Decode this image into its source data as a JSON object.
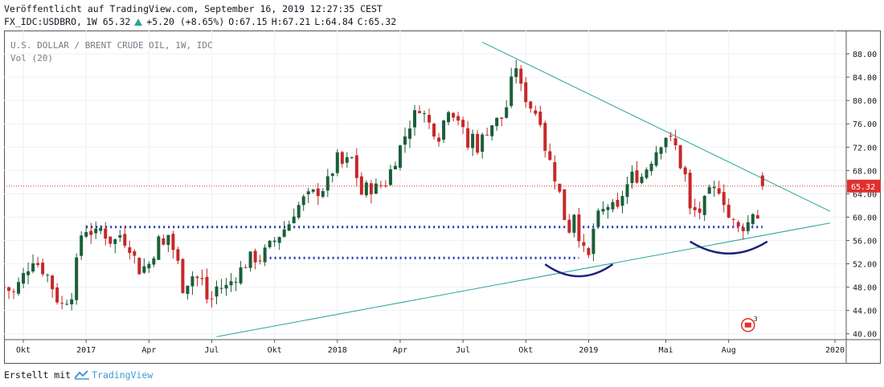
{
  "header": {
    "published": "Veröffentlicht auf TradingView.com, September 16, 2019 12:27:35 CEST",
    "symbol": "FX_IDC:USDBRO,",
    "interval_price": "1W 65.32",
    "change": "+5.20 (+8.65%)",
    "open": "O:67.15",
    "high": "H:67.21",
    "low": "L:64.84",
    "close": "C:65.32"
  },
  "chart_title": "U.S. DOLLAR / BRENT CRUDE OIL, 1W, IDC",
  "volume_label": "Vol (20)",
  "footer": {
    "created_with": "Erstellt mit",
    "brand": "TradingView"
  },
  "colors": {
    "up": "#26a69a",
    "down": "#ef5350",
    "candle_up": "#1b5e3a",
    "candle_down": "#c62828",
    "trendline": "#26a69a",
    "support": "#2233bb",
    "arc": "#1a237e",
    "last_price": "#e0312e"
  },
  "chart_data": {
    "type": "candlestick",
    "title": "U.S. DOLLAR / BRENT CRUDE OIL, 1W, IDC",
    "ylim": [
      39,
      92
    ],
    "y_ticks": [
      "88.00",
      "84.00",
      "80.00",
      "76.00",
      "72.00",
      "68.00",
      "64.00",
      "60.00",
      "56.00",
      "52.00",
      "48.00",
      "44.00",
      "40.00"
    ],
    "x_labels": [
      {
        "text": "Okt",
        "t": 0
      },
      {
        "text": "2017",
        "t": 13
      },
      {
        "text": "Apr",
        "t": 26
      },
      {
        "text": "Jul",
        "t": 39
      },
      {
        "text": "Okt",
        "t": 52
      },
      {
        "text": "2018",
        "t": 65
      },
      {
        "text": "Apr",
        "t": 78
      },
      {
        "text": "Jul",
        "t": 91
      },
      {
        "text": "Okt",
        "t": 104
      },
      {
        "text": "2019",
        "t": 117
      },
      {
        "text": "Mai",
        "t": 133
      },
      {
        "text": "Aug",
        "t": 146
      },
      {
        "text": "2020",
        "t": 168
      }
    ],
    "last_price": 65.32,
    "last_price_label": "65.32",
    "close_path": [
      [
        -4,
        48
      ],
      [
        -2,
        47
      ],
      [
        0,
        50
      ],
      [
        2,
        53
      ],
      [
        3,
        52
      ],
      [
        5,
        50
      ],
      [
        7,
        46
      ],
      [
        8,
        45
      ],
      [
        10,
        47
      ],
      [
        12,
        57
      ],
      [
        13,
        58
      ],
      [
        15,
        57
      ],
      [
        16,
        58
      ],
      [
        18,
        56
      ],
      [
        19,
        56
      ],
      [
        20,
        57
      ],
      [
        22,
        55
      ],
      [
        24,
        51
      ],
      [
        26,
        52
      ],
      [
        28,
        56
      ],
      [
        29,
        55
      ],
      [
        30,
        57
      ],
      [
        32,
        52
      ],
      [
        33,
        48
      ],
      [
        35,
        50
      ],
      [
        37,
        49
      ],
      [
        38,
        46
      ],
      [
        39,
        46
      ],
      [
        40,
        48
      ],
      [
        42,
        48
      ],
      [
        43,
        49
      ],
      [
        45,
        51
      ],
      [
        47,
        53
      ],
      [
        49,
        53
      ],
      [
        50,
        54
      ],
      [
        51,
        55
      ],
      [
        53,
        57
      ],
      [
        55,
        59
      ],
      [
        56,
        61
      ],
      [
        58,
        63
      ],
      [
        60,
        64
      ],
      [
        62,
        65
      ],
      [
        63,
        66
      ],
      [
        65,
        70
      ],
      [
        66,
        69
      ],
      [
        68,
        70
      ],
      [
        70,
        64
      ],
      [
        71,
        65
      ],
      [
        73,
        65
      ],
      [
        75,
        66
      ],
      [
        77,
        70
      ],
      [
        79,
        74
      ],
      [
        80,
        76
      ],
      [
        82,
        79
      ],
      [
        84,
        76
      ],
      [
        86,
        74
      ],
      [
        88,
        79
      ],
      [
        90,
        77
      ],
      [
        92,
        72
      ],
      [
        93,
        74
      ],
      [
        94,
        72
      ],
      [
        96,
        75
      ],
      [
        97,
        76
      ],
      [
        99,
        77
      ],
      [
        100,
        79
      ],
      [
        101,
        83
      ],
      [
        102,
        86
      ],
      [
        103,
        82
      ],
      [
        105,
        79
      ],
      [
        107,
        77
      ],
      [
        108,
        72
      ],
      [
        110,
        67
      ],
      [
        111,
        64
      ],
      [
        112,
        60
      ],
      [
        113,
        58
      ],
      [
        114,
        61
      ],
      [
        115,
        57
      ],
      [
        116,
        54
      ],
      [
        117,
        53
      ],
      [
        118,
        58
      ],
      [
        119,
        60
      ],
      [
        121,
        62
      ],
      [
        123,
        61
      ],
      [
        124,
        64
      ],
      [
        126,
        67
      ],
      [
        128,
        67
      ],
      [
        130,
        70
      ],
      [
        132,
        73
      ],
      [
        133,
        74
      ],
      [
        135,
        72
      ],
      [
        136,
        69
      ],
      [
        137,
        67
      ],
      [
        138,
        61
      ],
      [
        140,
        61
      ],
      [
        142,
        64
      ],
      [
        144,
        65
      ],
      [
        145,
        63
      ],
      [
        146,
        60
      ],
      [
        147,
        59
      ],
      [
        148,
        58
      ],
      [
        150,
        59
      ],
      [
        151,
        61
      ],
      [
        152,
        60
      ],
      [
        153,
        67
      ],
      [
        153.5,
        65.32
      ]
    ],
    "trendlines": [
      {
        "name": "descending",
        "from": [
          95,
          90
        ],
        "to": [
          167,
          61
        ]
      },
      {
        "name": "ascending",
        "from": [
          40,
          39.5
        ],
        "to": [
          167,
          59
        ]
      }
    ],
    "support_levels": [
      {
        "value": 58.3,
        "from": 13,
        "to": 153
      },
      {
        "value": 53.0,
        "from": 50,
        "to": 115
      }
    ],
    "arcs": [
      {
        "center_t": 115,
        "center_y": 50.0,
        "half_width_t": 7
      },
      {
        "center_t": 146,
        "center_y": 53.9,
        "half_width_t": 8
      }
    ],
    "event_badge": "3"
  }
}
